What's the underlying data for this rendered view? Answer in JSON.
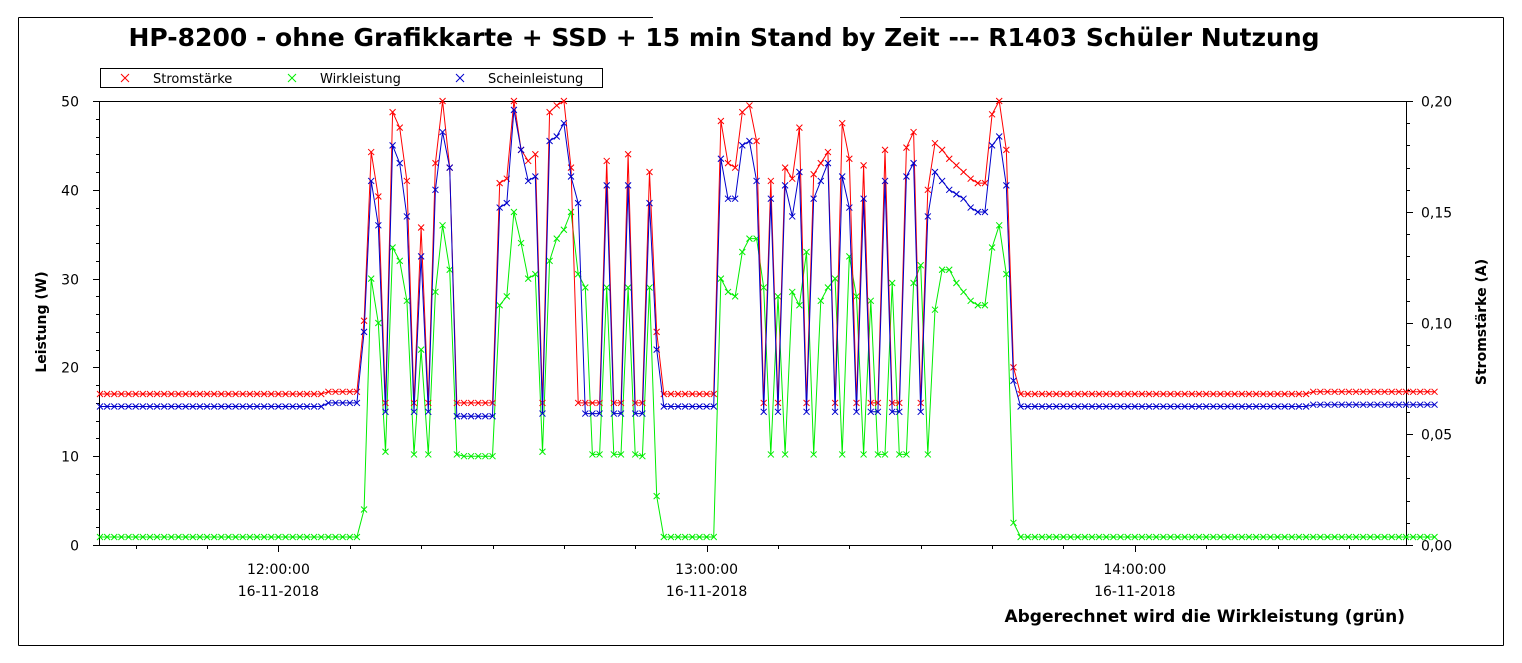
{
  "chart_data": {
    "type": "line",
    "title": "HP-8200 - ohne Grafikkarte + SSD + 15 min Stand by Zeit --- R1403 Schüler Nutzung",
    "ylabel_left": "Leistung (W)",
    "ylabel_right": "Stromstärke (A)",
    "ylim_left": [
      0,
      50
    ],
    "ylim_right": [
      0,
      0.2
    ],
    "yticks_left": [
      "0",
      "10",
      "20",
      "30",
      "40",
      "50"
    ],
    "yticks_right": [
      "0,00",
      "0,05",
      "0,10",
      "0,15",
      "0,20"
    ],
    "xlim": [
      "11:35",
      "14:38"
    ],
    "xticks": [
      {
        "time": "12:00:00",
        "date": "16-11-2018"
      },
      {
        "time": "13:00:00",
        "date": "16-11-2018"
      },
      {
        "time": "14:00:00",
        "date": "16-11-2018"
      }
    ],
    "footnote": "Abgerechnet wird die Wirkleistung (grün)",
    "grid": false,
    "legend_position": "top-left",
    "x_step_minutes": 1,
    "x_start": "11:35",
    "series": [
      {
        "name": "Stromstärke",
        "color": "#ff0000",
        "axis": "right",
        "unit": "A",
        "values": [
          0.068,
          0.068,
          0.068,
          0.068,
          0.068,
          0.068,
          0.068,
          0.068,
          0.068,
          0.068,
          0.068,
          0.068,
          0.068,
          0.068,
          0.068,
          0.068,
          0.068,
          0.068,
          0.068,
          0.068,
          0.068,
          0.068,
          0.068,
          0.068,
          0.068,
          0.068,
          0.068,
          0.068,
          0.068,
          0.068,
          0.068,
          0.068,
          0.069,
          0.069,
          0.069,
          0.069,
          0.069,
          0.101,
          0.177,
          0.157,
          0.064,
          0.195,
          0.188,
          0.164,
          0.064,
          0.143,
          0.064,
          0.172,
          0.2,
          0.17,
          0.064,
          0.064,
          0.064,
          0.064,
          0.064,
          0.064,
          0.163,
          0.165,
          0.2,
          0.178,
          0.173,
          0.176,
          0.064,
          0.195,
          0.198,
          0.2,
          0.17,
          0.064,
          0.064,
          0.064,
          0.064,
          0.173,
          0.064,
          0.064,
          0.176,
          0.064,
          0.064,
          0.168,
          0.096,
          0.068,
          0.068,
          0.068,
          0.068,
          0.068,
          0.068,
          0.068,
          0.068,
          0.191,
          0.172,
          0.17,
          0.195,
          0.198,
          0.182,
          0.064,
          0.164,
          0.064,
          0.17,
          0.165,
          0.188,
          0.064,
          0.167,
          0.172,
          0.177,
          0.064,
          0.19,
          0.174,
          0.064,
          0.171,
          0.064,
          0.064,
          0.178,
          0.064,
          0.064,
          0.179,
          0.186,
          0.064,
          0.16,
          0.181,
          0.178,
          0.174,
          0.171,
          0.168,
          0.165,
          0.163,
          0.163,
          0.194,
          0.2,
          0.178,
          0.08,
          0.068,
          0.068,
          0.068,
          0.068,
          0.068,
          0.068,
          0.068,
          0.068,
          0.068,
          0.068,
          0.068,
          0.068,
          0.068,
          0.068,
          0.068,
          0.068,
          0.068,
          0.068,
          0.068,
          0.068,
          0.068,
          0.068,
          0.068,
          0.068,
          0.068,
          0.068,
          0.068,
          0.068,
          0.068,
          0.068,
          0.068,
          0.068,
          0.068,
          0.068,
          0.068,
          0.068,
          0.068,
          0.068,
          0.068,
          0.068,
          0.068,
          0.069,
          0.069,
          0.069,
          0.069,
          0.069,
          0.069,
          0.069,
          0.069,
          0.069,
          0.069,
          0.069,
          0.069,
          0.069,
          0.069,
          0.069,
          0.069,
          0.069,
          0.069
        ]
      },
      {
        "name": "Wirkleistung",
        "color": "#00ee00",
        "axis": "left",
        "unit": "W",
        "values": [
          0.9,
          0.9,
          0.9,
          0.9,
          0.9,
          0.9,
          0.9,
          0.9,
          0.9,
          0.9,
          0.9,
          0.9,
          0.9,
          0.9,
          0.9,
          0.9,
          0.9,
          0.9,
          0.9,
          0.9,
          0.9,
          0.9,
          0.9,
          0.9,
          0.9,
          0.9,
          0.9,
          0.9,
          0.9,
          0.9,
          0.9,
          0.9,
          0.9,
          0.9,
          0.9,
          0.9,
          0.9,
          4,
          30,
          25,
          10.5,
          33.5,
          32,
          27.5,
          10.2,
          22,
          10.2,
          28.5,
          36,
          31,
          10.2,
          10,
          10,
          10,
          10,
          10,
          27,
          28,
          37.5,
          34,
          30,
          30.5,
          10.5,
          32,
          34.5,
          35.5,
          37.5,
          30.5,
          29,
          10.2,
          10.2,
          29,
          10.2,
          10.2,
          29,
          10.2,
          10,
          29,
          5.5,
          0.9,
          0.9,
          0.9,
          0.9,
          0.9,
          0.9,
          0.9,
          0.9,
          30,
          28.5,
          28,
          33,
          34.5,
          34.5,
          29,
          10.2,
          28,
          10.2,
          28.5,
          27,
          33,
          10.2,
          27.5,
          29,
          30,
          10.2,
          32.5,
          28,
          10.2,
          27.5,
          10.2,
          10.2,
          29.5,
          10.2,
          10.2,
          29.5,
          31.5,
          10.2,
          26.5,
          31,
          31,
          29.5,
          28.5,
          27.5,
          27,
          27,
          33.5,
          36,
          30.5,
          2.5,
          0.9,
          0.9,
          0.9,
          0.9,
          0.9,
          0.9,
          0.9,
          0.9,
          0.9,
          0.9,
          0.9,
          0.9,
          0.9,
          0.9,
          0.9,
          0.9,
          0.9,
          0.9,
          0.9,
          0.9,
          0.9,
          0.9,
          0.9,
          0.9,
          0.9,
          0.9,
          0.9,
          0.9,
          0.9,
          0.9,
          0.9,
          0.9,
          0.9,
          0.9,
          0.9,
          0.9,
          0.9,
          0.9,
          0.9,
          0.9,
          0.9,
          0.9,
          0.9,
          0.9,
          0.9,
          0.9,
          0.9,
          0.9,
          0.9,
          0.9,
          0.9,
          0.9,
          0.9,
          0.9,
          0.9,
          0.9,
          0.9,
          0.9,
          0.9
        ]
      },
      {
        "name": "Scheinleistung",
        "color": "#0000cc",
        "axis": "left",
        "unit": "W",
        "values": [
          15.6,
          15.6,
          15.6,
          15.6,
          15.6,
          15.6,
          15.6,
          15.6,
          15.6,
          15.6,
          15.6,
          15.6,
          15.6,
          15.6,
          15.6,
          15.6,
          15.6,
          15.6,
          15.6,
          15.6,
          15.6,
          15.6,
          15.6,
          15.6,
          15.6,
          15.6,
          15.6,
          15.6,
          15.6,
          15.6,
          15.6,
          15.6,
          16,
          16,
          16,
          16,
          16,
          24,
          41,
          36,
          15,
          45,
          43,
          37,
          15,
          32.5,
          15,
          40,
          46.5,
          42.5,
          14.5,
          14.5,
          14.5,
          14.5,
          14.5,
          14.5,
          38,
          38.5,
          49,
          44.5,
          41,
          41.5,
          14.8,
          45.5,
          46,
          47.5,
          41.5,
          38.5,
          14.8,
          14.8,
          14.8,
          40.5,
          14.8,
          14.8,
          40.5,
          14.8,
          14.8,
          38.5,
          22,
          15.6,
          15.6,
          15.6,
          15.6,
          15.6,
          15.6,
          15.6,
          15.6,
          43.5,
          39,
          39,
          45,
          45.5,
          41,
          15,
          39,
          15,
          40.5,
          37,
          42,
          15,
          39,
          41,
          43,
          15,
          41.5,
          38,
          15,
          39,
          15,
          15,
          41,
          15,
          15,
          41.5,
          43,
          15,
          37,
          42,
          41,
          40,
          39.5,
          39,
          38,
          37.5,
          37.5,
          45,
          46,
          40.5,
          18.5,
          15.6,
          15.6,
          15.6,
          15.6,
          15.6,
          15.6,
          15.6,
          15.6,
          15.6,
          15.6,
          15.6,
          15.6,
          15.6,
          15.6,
          15.6,
          15.6,
          15.6,
          15.6,
          15.6,
          15.6,
          15.6,
          15.6,
          15.6,
          15.6,
          15.6,
          15.6,
          15.6,
          15.6,
          15.6,
          15.6,
          15.6,
          15.6,
          15.6,
          15.6,
          15.6,
          15.6,
          15.6,
          15.6,
          15.6,
          15.6,
          15.6,
          15.8,
          15.8,
          15.8,
          15.8,
          15.8,
          15.8,
          15.8,
          15.8,
          15.8,
          15.8,
          15.8,
          15.8,
          15.8,
          15.8,
          15.8,
          15.8,
          15.8,
          15.8
        ]
      }
    ]
  }
}
